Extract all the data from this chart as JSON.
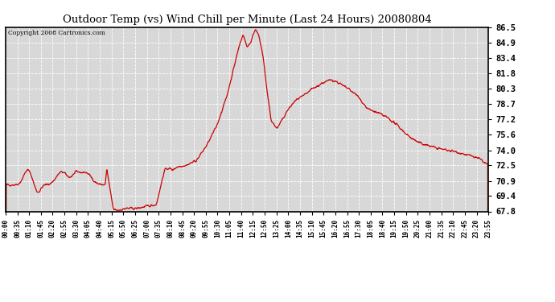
{
  "title": "Outdoor Temp (vs) Wind Chill per Minute (Last 24 Hours) 20080804",
  "copyright": "Copyright 2008 Cartronics.com",
  "line_color": "#cc0000",
  "background_color": "#ffffff",
  "plot_bg_color": "#d8d8d8",
  "grid_color": "#ffffff",
  "ylim": [
    67.8,
    86.5
  ],
  "yticks": [
    67.8,
    69.4,
    70.9,
    72.5,
    74.0,
    75.6,
    77.2,
    78.7,
    80.3,
    81.8,
    83.4,
    84.9,
    86.5
  ],
  "xtick_labels": [
    "00:00",
    "00:35",
    "01:10",
    "01:45",
    "02:20",
    "02:55",
    "03:30",
    "04:05",
    "04:40",
    "05:15",
    "05:50",
    "06:25",
    "07:00",
    "07:35",
    "08:10",
    "08:45",
    "09:20",
    "09:55",
    "10:30",
    "11:05",
    "11:40",
    "12:15",
    "12:50",
    "13:25",
    "14:00",
    "14:35",
    "15:10",
    "15:45",
    "16:20",
    "16:55",
    "17:30",
    "18:05",
    "18:40",
    "19:15",
    "19:50",
    "20:25",
    "21:00",
    "21:35",
    "22:10",
    "22:45",
    "23:20",
    "23:55"
  ],
  "n_points": 1440
}
